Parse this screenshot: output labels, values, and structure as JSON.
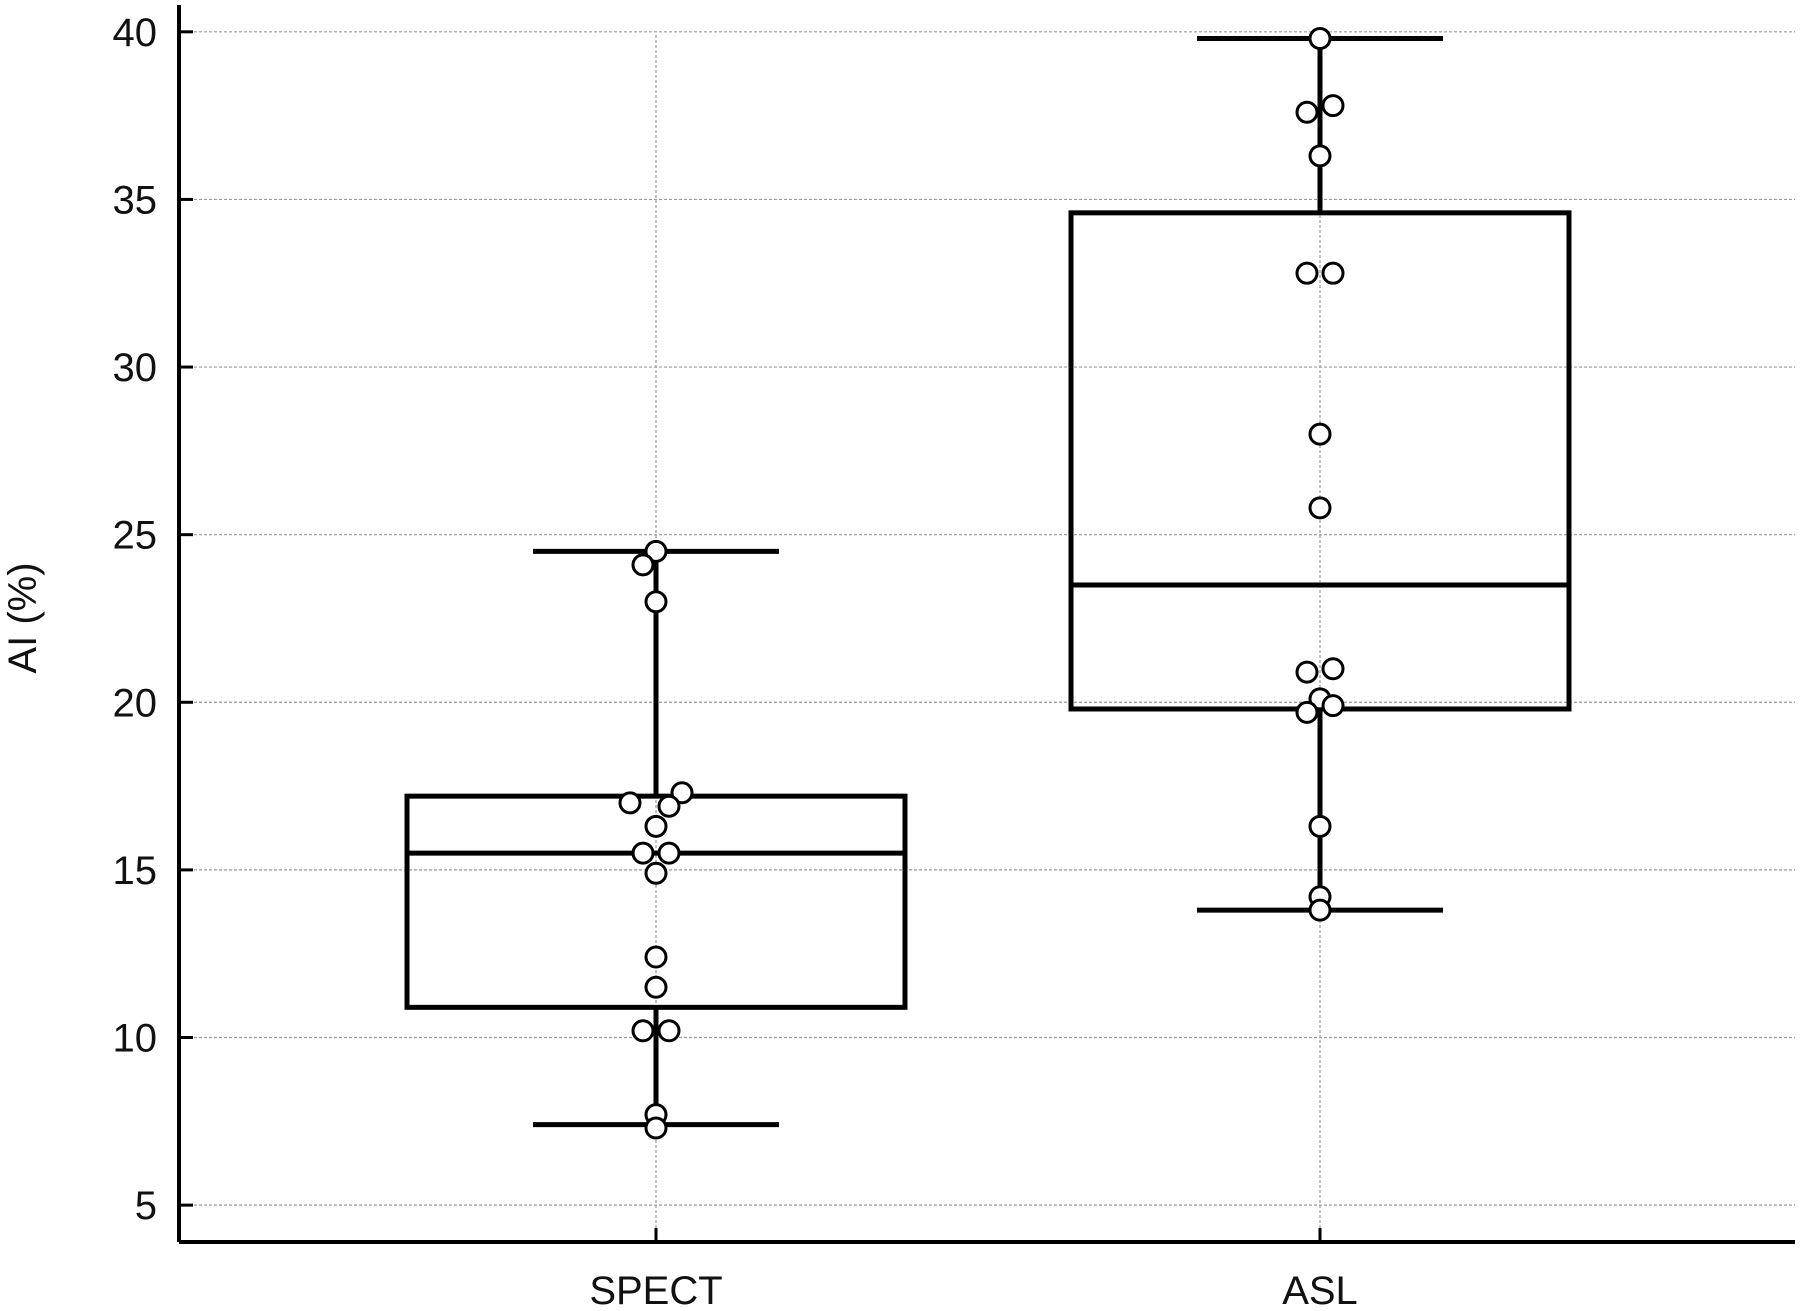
{
  "chart_data": {
    "type": "box",
    "ylabel": "AI (%)",
    "xlabel": "",
    "ylim": [
      3.9,
      40.8
    ],
    "yticks": [
      5,
      10,
      15,
      20,
      25,
      30,
      35,
      40
    ],
    "ytick_labels": [
      "5",
      "10",
      "15",
      "20",
      "25",
      "30",
      "35",
      "40"
    ],
    "grid": true,
    "categories": [
      "SPECT",
      "ASL"
    ],
    "series": [
      {
        "category": "SPECT",
        "whisker_low": 7.4,
        "q1": 10.9,
        "median": 15.5,
        "q3": 17.2,
        "whisker_high": 24.5,
        "points": [
          [
            0,
            24.5
          ],
          [
            -0.02,
            24.1
          ],
          [
            0,
            23.0
          ],
          [
            0.04,
            17.3
          ],
          [
            -0.04,
            17.0
          ],
          [
            0.02,
            16.9
          ],
          [
            0,
            16.3
          ],
          [
            -0.02,
            15.5
          ],
          [
            0.02,
            15.5
          ],
          [
            0,
            14.9
          ],
          [
            0,
            12.4
          ],
          [
            0,
            11.5
          ],
          [
            -0.02,
            10.2
          ],
          [
            0.02,
            10.2
          ],
          [
            0,
            7.7
          ],
          [
            0,
            7.3
          ]
        ]
      },
      {
        "category": "ASL",
        "whisker_low": 13.8,
        "q1": 19.8,
        "median": 23.5,
        "q3": 34.6,
        "whisker_high": 39.8,
        "points": [
          [
            0,
            39.8
          ],
          [
            0.02,
            37.8
          ],
          [
            -0.02,
            37.6
          ],
          [
            0,
            36.3
          ],
          [
            -0.02,
            32.8
          ],
          [
            0.02,
            32.8
          ],
          [
            0,
            28.0
          ],
          [
            0,
            25.8
          ],
          [
            -0.02,
            20.9
          ],
          [
            0.02,
            21.0
          ],
          [
            0,
            20.1
          ],
          [
            0.02,
            19.9
          ],
          [
            -0.02,
            19.7
          ],
          [
            0,
            16.3
          ],
          [
            0,
            14.2
          ],
          [
            0,
            13.8
          ]
        ]
      }
    ]
  }
}
